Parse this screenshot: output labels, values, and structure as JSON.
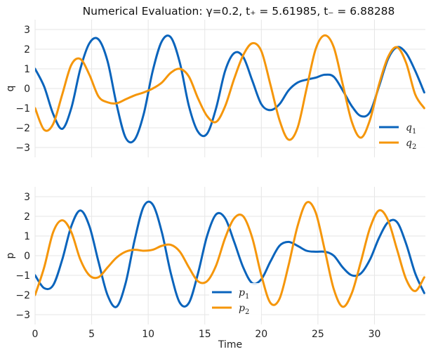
{
  "chart_data": {
    "title": "Numerical Evaluation: γ=0.2, t₊ = 5.61985, t₋ = 6.88288",
    "xlabel": "Time",
    "xlim": [
      0,
      34.5
    ],
    "xticks": [
      0,
      5,
      10,
      15,
      20,
      25,
      30
    ],
    "colors": {
      "series1": "#0a64bc",
      "series2": "#f5960a"
    },
    "panels": [
      {
        "id": "top",
        "type": "line",
        "ylabel": "q",
        "ylim": [
          -3.5,
          3.5
        ],
        "yticks": [
          -3,
          -2,
          -1,
          0,
          1,
          2,
          3
        ],
        "grid": true,
        "legend_position": "bottom-right",
        "series": [
          {
            "name": "q1",
            "display_name": "q",
            "x": [
              0,
              0.8,
              1.6,
              2.4,
              3.2,
              4.0,
              4.8,
              5.6,
              6.4,
              7.2,
              8.0,
              8.8,
              9.6,
              10.4,
              11.2,
              12.0,
              12.8,
              13.6,
              14.4,
              15.2,
              16.0,
              16.8,
              17.6,
              18.4,
              19.2,
              20.0,
              20.8,
              21.6,
              22.4,
              23.2,
              24.0,
              24.8,
              25.6,
              26.4,
              27.2,
              28.0,
              28.8,
              29.6,
              30.4,
              31.2,
              32.0,
              32.8,
              33.6,
              34.4
            ],
            "y": [
              1.0,
              0.1,
              -1.3,
              -2.05,
              -1.0,
              1.0,
              2.3,
              2.5,
              1.4,
              -0.8,
              -2.5,
              -2.6,
              -1.3,
              0.9,
              2.4,
              2.6,
              1.3,
              -0.9,
              -2.2,
              -2.3,
              -1.0,
              0.9,
              1.8,
              1.6,
              0.4,
              -0.8,
              -1.1,
              -0.8,
              -0.1,
              0.3,
              0.45,
              0.55,
              0.7,
              0.6,
              -0.1,
              -0.9,
              -1.4,
              -1.2,
              0.1,
              1.5,
              2.1,
              1.8,
              0.9,
              -0.2
            ]
          },
          {
            "name": "q2",
            "display_name": "q",
            "x": [
              0,
              0.8,
              1.6,
              2.4,
              3.2,
              4.0,
              4.8,
              5.6,
              6.4,
              7.2,
              8.0,
              8.8,
              9.6,
              10.4,
              11.2,
              12.0,
              12.8,
              13.6,
              14.4,
              15.2,
              16.0,
              16.8,
              17.6,
              18.4,
              19.2,
              20.0,
              20.8,
              21.6,
              22.4,
              23.2,
              24.0,
              24.8,
              25.6,
              26.4,
              27.2,
              28.0,
              28.8,
              29.6,
              30.4,
              31.2,
              32.0,
              32.8,
              33.6,
              34.4
            ],
            "y": [
              -1.0,
              -2.1,
              -1.8,
              -0.3,
              1.2,
              1.5,
              0.7,
              -0.4,
              -0.7,
              -0.75,
              -0.55,
              -0.35,
              -0.2,
              0.0,
              0.3,
              0.8,
              1.0,
              0.6,
              -0.5,
              -1.4,
              -1.7,
              -0.9,
              0.5,
              1.7,
              2.3,
              1.9,
              0.2,
              -1.6,
              -2.6,
              -2.0,
              0.0,
              2.0,
              2.7,
              2.1,
              0.2,
              -1.7,
              -2.5,
              -1.6,
              0.2,
              1.6,
              2.1,
              1.3,
              -0.3,
              -1.0
            ]
          }
        ]
      },
      {
        "id": "bottom",
        "type": "line",
        "ylabel": "p",
        "ylim": [
          -3.5,
          3.5
        ],
        "yticks": [
          -3,
          -2,
          -1,
          0,
          1,
          2,
          3
        ],
        "grid": true,
        "legend_position": "bottom-center",
        "series": [
          {
            "name": "p1",
            "display_name": "p",
            "x": [
              0,
              0.8,
              1.6,
              2.4,
              3.2,
              4.0,
              4.8,
              5.6,
              6.4,
              7.2,
              8.0,
              8.8,
              9.6,
              10.4,
              11.2,
              12.0,
              12.8,
              13.6,
              14.4,
              15.2,
              16.0,
              16.8,
              17.6,
              18.4,
              19.2,
              20.0,
              20.8,
              21.6,
              22.4,
              23.2,
              24.0,
              24.8,
              25.6,
              26.4,
              27.2,
              28.0,
              28.8,
              29.6,
              30.4,
              31.2,
              32.0,
              32.8,
              33.6,
              34.4
            ],
            "y": [
              -1.0,
              -1.65,
              -1.5,
              -0.2,
              1.5,
              2.3,
              1.5,
              -0.3,
              -2.0,
              -2.6,
              -1.4,
              0.8,
              2.5,
              2.6,
              1.2,
              -0.9,
              -2.4,
              -2.4,
              -0.9,
              1.0,
              2.1,
              1.9,
              0.7,
              -0.6,
              -1.4,
              -1.2,
              -0.3,
              0.5,
              0.7,
              0.5,
              0.25,
              0.2,
              0.2,
              0.0,
              -0.6,
              -1.0,
              -0.9,
              -0.2,
              0.9,
              1.7,
              1.7,
              0.6,
              -0.9,
              -1.9
            ]
          },
          {
            "name": "p2",
            "display_name": "p",
            "x": [
              0,
              0.8,
              1.6,
              2.4,
              3.2,
              4.0,
              4.8,
              5.6,
              6.4,
              7.2,
              8.0,
              8.8,
              9.6,
              10.4,
              11.2,
              12.0,
              12.8,
              13.6,
              14.4,
              15.2,
              16.0,
              16.8,
              17.6,
              18.4,
              19.2,
              20.0,
              20.8,
              21.6,
              22.4,
              23.2,
              24.0,
              24.8,
              25.6,
              26.4,
              27.2,
              28.0,
              28.8,
              29.6,
              30.4,
              31.2,
              32.0,
              32.8,
              33.6,
              34.4
            ],
            "y": [
              -2.0,
              -0.6,
              1.2,
              1.8,
              1.2,
              -0.2,
              -1.0,
              -1.1,
              -0.6,
              -0.1,
              0.2,
              0.3,
              0.25,
              0.3,
              0.5,
              0.55,
              0.2,
              -0.6,
              -1.3,
              -1.3,
              -0.5,
              0.9,
              1.9,
              2.0,
              0.9,
              -1.0,
              -2.4,
              -2.2,
              -0.5,
              1.5,
              2.7,
              2.2,
              0.3,
              -1.7,
              -2.6,
              -1.9,
              -0.3,
              1.4,
              2.3,
              1.8,
              0.3,
              -1.2,
              -1.8,
              -1.1
            ]
          }
        ]
      }
    ]
  }
}
